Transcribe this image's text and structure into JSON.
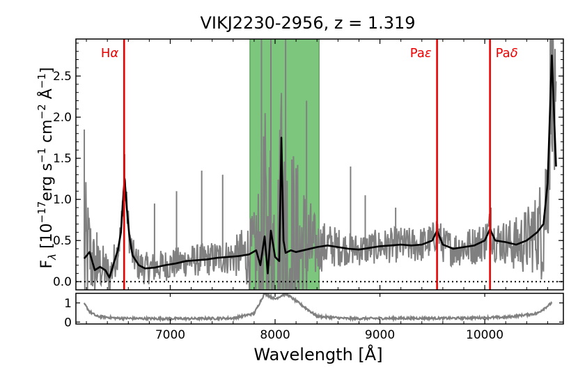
{
  "chart_data": {
    "type": "line",
    "title": "VIKJ2230-2956, z = 1.319",
    "xlabel": "Wavelength [Å]",
    "ylabel_main": "F",
    "ylabel_sub": "λ",
    "ylabel_rest": " [10",
    "ylabel_exp1": "−17",
    "ylabel_erg": "erg s",
    "ylabel_exp2": "−1",
    "ylabel_cm": " cm",
    "ylabel_exp3": "−2",
    "ylabel_ang": " Å",
    "ylabel_exp4": "−1",
    "ylabel_close": "]",
    "xlim": [
      6100,
      10750
    ],
    "ylim": [
      -0.1,
      2.95
    ],
    "xticks": [
      7000,
      8000,
      9000,
      10000
    ],
    "yticks": [
      0.0,
      0.5,
      1.0,
      1.5,
      2.0,
      2.5
    ],
    "ytick_labels": [
      "0.0",
      "0.5",
      "1.0",
      "1.5",
      "2.0",
      "2.5"
    ],
    "lower_ylim": [
      -0.1,
      1.5
    ],
    "lower_yticks": [
      0,
      1
    ],
    "zero_line": 0.0,
    "telluric_band": [
      7760,
      8420
    ],
    "telluric_color": "#5cb85c",
    "raw_color": "#808080",
    "smooth_color": "#000000",
    "line_color": "#ee0000",
    "emission_lines": [
      {
        "label_main": "H",
        "label_ital": "α",
        "x": 6560
      },
      {
        "label_main": "Pa",
        "label_ital": "ε",
        "x": 9545
      },
      {
        "label_main": "Pa",
        "label_ital": "δ",
        "x": 10050
      }
    ],
    "smoothed_spectrum": [
      [
        6180,
        0.28
      ],
      [
        6230,
        0.36
      ],
      [
        6280,
        0.14
      ],
      [
        6330,
        0.18
      ],
      [
        6380,
        0.14
      ],
      [
        6420,
        0.05
      ],
      [
        6460,
        0.22
      ],
      [
        6500,
        0.38
      ],
      [
        6530,
        0.6
      ],
      [
        6555,
        1.1
      ],
      [
        6565,
        1.25
      ],
      [
        6585,
        0.9
      ],
      [
        6610,
        0.55
      ],
      [
        6640,
        0.32
      ],
      [
        6700,
        0.2
      ],
      [
        6760,
        0.16
      ],
      [
        6850,
        0.17
      ],
      [
        6950,
        0.2
      ],
      [
        7050,
        0.22
      ],
      [
        7150,
        0.25
      ],
      [
        7250,
        0.26
      ],
      [
        7350,
        0.27
      ],
      [
        7450,
        0.29
      ],
      [
        7550,
        0.3
      ],
      [
        7650,
        0.31
      ],
      [
        7750,
        0.33
      ],
      [
        7820,
        0.38
      ],
      [
        7860,
        0.2
      ],
      [
        7900,
        0.55
      ],
      [
        7930,
        0.1
      ],
      [
        7960,
        0.62
      ],
      [
        8000,
        0.3
      ],
      [
        8040,
        0.25
      ],
      [
        8060,
        1.75
      ],
      [
        8080,
        0.5
      ],
      [
        8100,
        0.35
      ],
      [
        8150,
        0.38
      ],
      [
        8200,
        0.36
      ],
      [
        8300,
        0.39
      ],
      [
        8400,
        0.42
      ],
      [
        8500,
        0.44
      ],
      [
        8600,
        0.42
      ],
      [
        8700,
        0.4
      ],
      [
        8800,
        0.39
      ],
      [
        8900,
        0.41
      ],
      [
        9000,
        0.43
      ],
      [
        9100,
        0.44
      ],
      [
        9200,
        0.45
      ],
      [
        9300,
        0.44
      ],
      [
        9400,
        0.45
      ],
      [
        9500,
        0.5
      ],
      [
        9545,
        0.62
      ],
      [
        9600,
        0.45
      ],
      [
        9700,
        0.4
      ],
      [
        9800,
        0.42
      ],
      [
        9900,
        0.44
      ],
      [
        10000,
        0.5
      ],
      [
        10050,
        0.64
      ],
      [
        10100,
        0.5
      ],
      [
        10200,
        0.48
      ],
      [
        10300,
        0.45
      ],
      [
        10400,
        0.5
      ],
      [
        10500,
        0.6
      ],
      [
        10560,
        0.7
      ],
      [
        10600,
        1.2
      ],
      [
        10640,
        2.75
      ],
      [
        10680,
        1.4
      ]
    ],
    "raw_spectrum_spikes": [
      [
        6180,
        1.85
      ],
      [
        6300,
        0.6
      ],
      [
        6420,
        -0.08
      ],
      [
        6565,
        1.55
      ],
      [
        6850,
        0.95
      ],
      [
        7060,
        1.1
      ],
      [
        7300,
        1.35
      ],
      [
        7500,
        1.3
      ],
      [
        7870,
        2.95
      ],
      [
        7960,
        2.95
      ],
      [
        8100,
        2.95
      ],
      [
        8300,
        2.2
      ],
      [
        8720,
        1.4
      ],
      [
        8860,
        1.05
      ],
      [
        9150,
        0.9
      ],
      [
        9545,
        0.95
      ],
      [
        10060,
        0.9
      ],
      [
        10450,
        0.85
      ],
      [
        10650,
        2.95
      ]
    ],
    "error_spectrum": [
      [
        6180,
        0.95
      ],
      [
        6230,
        0.55
      ],
      [
        6300,
        0.3
      ],
      [
        6500,
        0.2
      ],
      [
        6800,
        0.18
      ],
      [
        7200,
        0.18
      ],
      [
        7600,
        0.2
      ],
      [
        7800,
        0.45
      ],
      [
        7900,
        1.5
      ],
      [
        8000,
        1.2
      ],
      [
        8100,
        1.5
      ],
      [
        8250,
        0.9
      ],
      [
        8400,
        0.3
      ],
      [
        8700,
        0.18
      ],
      [
        9200,
        0.2
      ],
      [
        9700,
        0.2
      ],
      [
        10200,
        0.25
      ],
      [
        10500,
        0.45
      ],
      [
        10640,
        1.0
      ]
    ]
  }
}
